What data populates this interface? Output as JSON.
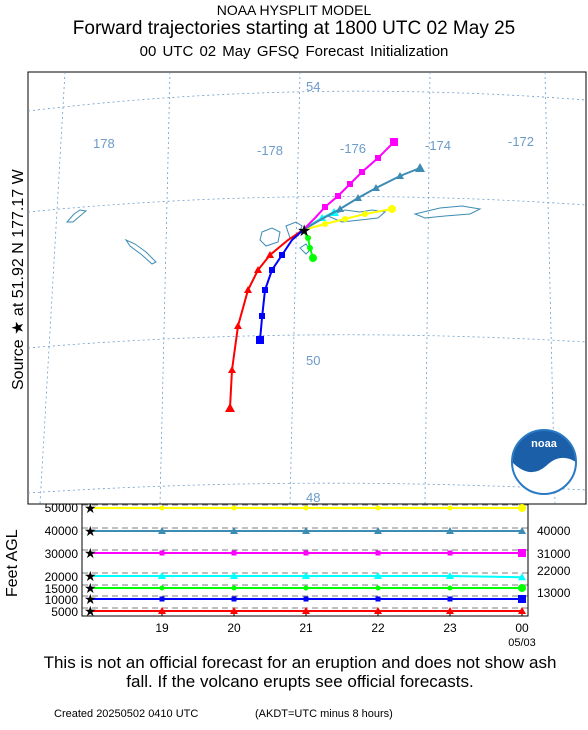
{
  "header": {
    "model": "NOAA HYSPLIT MODEL",
    "title": "Forward trajectories starting at 1800 UTC 02 May 25",
    "subtitle": "00 UTC 02 May    GFSQ  Forecast Initialization"
  },
  "source_label": "Source ★  at   51.92 N  177.17 W",
  "agl_label": "Feet AGL",
  "map": {
    "lat_labels": [
      "54",
      "50",
      "48"
    ],
    "lon_labels": [
      "178",
      "-178",
      "-176",
      "-174",
      "-172"
    ],
    "grid_color": "#6b9bc9",
    "logo_text": "noaa"
  },
  "trajectories": [
    {
      "color": "#ff0000",
      "marker": "triangle",
      "start_height_ft": 5000
    },
    {
      "color": "#0000ff",
      "marker": "square",
      "start_height_ft": 10000
    },
    {
      "color": "#00ff00",
      "marker": "circle",
      "start_height_ft": 15000
    },
    {
      "color": "#00ffff",
      "marker": "triangle",
      "start_height_ft": 20000
    },
    {
      "color": "#ff00ff",
      "marker": "square",
      "start_height_ft": 30000
    },
    {
      "color": "#3c8cb4",
      "marker": "triangle",
      "start_height_ft": 40000
    },
    {
      "color": "#ffff00",
      "marker": "circle",
      "start_height_ft": 50000
    }
  ],
  "chart_data": {
    "type": "line",
    "xlabel": "",
    "ylabel": "Feet AGL",
    "x_tick_labels": [
      "19",
      "20",
      "21",
      "22",
      "23",
      "00"
    ],
    "x_tick_sublabel": "05/03",
    "y_left_ticks": [
      "50000",
      "40000",
      "30000",
      "20000",
      "15000",
      "10000",
      "5000"
    ],
    "y_right_labels": [
      "40000",
      "31000",
      "22000",
      "13000"
    ],
    "series": [
      {
        "color": "#ffff00",
        "values": [
          50000,
          50000,
          50000,
          50000,
          50000,
          50000,
          50000
        ]
      },
      {
        "color": "#3c8cb4",
        "values": [
          40000,
          40000,
          40000,
          40000,
          40000,
          40000,
          40000
        ]
      },
      {
        "color": "#ff00ff",
        "values": [
          30000,
          30000,
          30000,
          30000,
          30000,
          30000,
          30000
        ]
      },
      {
        "color": "#00ffff",
        "values": [
          20000,
          20000,
          20000,
          20000,
          20000,
          20000,
          19500
        ]
      },
      {
        "color": "#00ff00",
        "values": [
          15000,
          15000,
          15000,
          15000,
          15000,
          15000,
          15000
        ]
      },
      {
        "color": "#0000ff",
        "values": [
          10000,
          10000,
          10000,
          10000,
          10000,
          10000,
          10000
        ]
      },
      {
        "color": "#ff0000",
        "values": [
          5000,
          5000,
          5000,
          5000,
          5000,
          5000,
          5000
        ]
      }
    ]
  },
  "disclaimer": "This is not an official forecast for an eruption and does not show ash fall. If the volcano erupts see official forecasts.",
  "footer": {
    "created": "Created 20250502 0410 UTC",
    "note": "(AKDT=UTC minus 8 hours)"
  }
}
